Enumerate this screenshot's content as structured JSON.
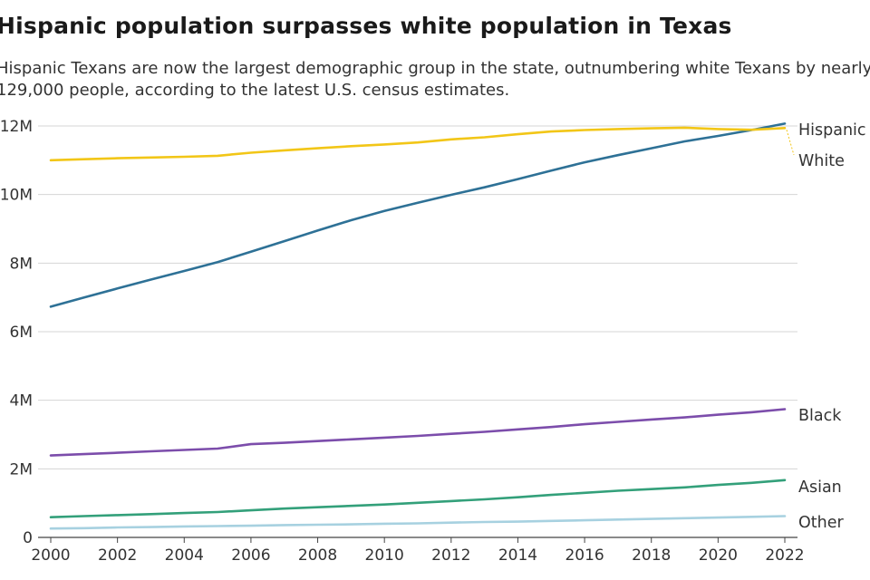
{
  "title": "Hispanic population surpasses white population in Texas",
  "subtitle": "Hispanic Texans are now the largest demographic group in the state, outnumbering white Texans by nearly 129,000 people, according to the latest U.S. census estimates.",
  "chart_data": {
    "type": "line",
    "x": [
      2000,
      2001,
      2002,
      2003,
      2004,
      2005,
      2006,
      2007,
      2008,
      2009,
      2010,
      2011,
      2012,
      2013,
      2014,
      2015,
      2016,
      2017,
      2018,
      2019,
      2020,
      2021,
      2022
    ],
    "ylim": [
      0,
      12000000
    ],
    "xlim": [
      2000,
      2022
    ],
    "x_ticks": [
      2000,
      2002,
      2004,
      2006,
      2008,
      2010,
      2012,
      2014,
      2016,
      2018,
      2020,
      2022
    ],
    "y_ticks": [
      {
        "value": 0,
        "label": "0"
      },
      {
        "value": 2000000,
        "label": "2M"
      },
      {
        "value": 4000000,
        "label": "4M"
      },
      {
        "value": 6000000,
        "label": "6M"
      },
      {
        "value": 8000000,
        "label": "8M"
      },
      {
        "value": 10000000,
        "label": "10M"
      },
      {
        "value": 12000000,
        "label": "12M"
      }
    ],
    "grid": "horizontal",
    "legend": "direct labels at line ends (right)",
    "series": [
      {
        "name": "Hispanic",
        "color": "#2e7196",
        "values": [
          6730000,
          7000000,
          7260000,
          7520000,
          7770000,
          8030000,
          8330000,
          8640000,
          8950000,
          9250000,
          9520000,
          9760000,
          9990000,
          10210000,
          10450000,
          10700000,
          10940000,
          11150000,
          11350000,
          11550000,
          11710000,
          11880000,
          12070000
        ]
      },
      {
        "name": "White",
        "color": "#f2c617",
        "values": [
          11000000,
          11030000,
          11060000,
          11080000,
          11100000,
          11130000,
          11220000,
          11290000,
          11350000,
          11410000,
          11460000,
          11520000,
          11610000,
          11670000,
          11760000,
          11840000,
          11880000,
          11910000,
          11930000,
          11950000,
          11910000,
          11890000,
          11940000
        ]
      },
      {
        "name": "Black",
        "color": "#7c4dab",
        "values": [
          2390000,
          2430000,
          2470000,
          2510000,
          2550000,
          2590000,
          2720000,
          2760000,
          2810000,
          2860000,
          2910000,
          2960000,
          3020000,
          3080000,
          3150000,
          3220000,
          3300000,
          3370000,
          3440000,
          3500000,
          3580000,
          3650000,
          3740000
        ]
      },
      {
        "name": "Asian",
        "color": "#33a07a",
        "values": [
          590000,
          620000,
          650000,
          680000,
          710000,
          740000,
          790000,
          840000,
          880000,
          920000,
          960000,
          1010000,
          1060000,
          1110000,
          1170000,
          1240000,
          1300000,
          1360000,
          1410000,
          1460000,
          1530000,
          1590000,
          1670000
        ]
      },
      {
        "name": "Other",
        "color": "#a7d1e0",
        "values": [
          260000,
          270000,
          290000,
          300000,
          320000,
          330000,
          340000,
          360000,
          370000,
          380000,
          400000,
          410000,
          430000,
          450000,
          460000,
          480000,
          500000,
          520000,
          540000,
          560000,
          580000,
          600000,
          620000
        ]
      }
    ]
  }
}
